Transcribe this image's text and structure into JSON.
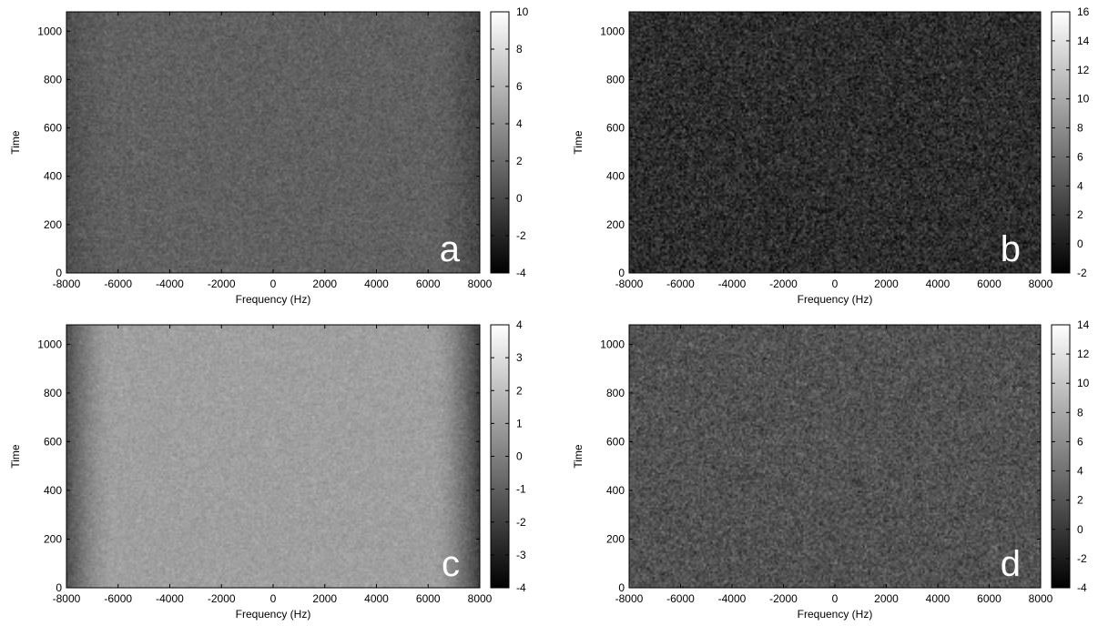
{
  "chart_data": [
    {
      "type": "heatmap",
      "panel_label": "a",
      "xlabel": "Frequency (Hz)",
      "ylabel": "Time",
      "xlim": [
        -8000,
        8000
      ],
      "ylim": [
        0,
        1080
      ],
      "xticks": [
        -8000,
        -6000,
        -4000,
        -2000,
        0,
        2000,
        4000,
        6000,
        8000
      ],
      "yticks": [
        0,
        200,
        400,
        600,
        800,
        1000
      ],
      "colorbar": {
        "min": -4,
        "max": 10,
        "ticks": [
          -4,
          -2,
          0,
          2,
          4,
          6,
          8,
          10
        ]
      },
      "colormap": "grayscale",
      "mean_level": 1.3,
      "noise_std": 0.5,
      "edge_falloff": {
        "left": -1.0,
        "right": -1.6
      }
    },
    {
      "type": "heatmap",
      "panel_label": "b",
      "xlabel": "Frequency (Hz)",
      "ylabel": "Time",
      "xlim": [
        -8000,
        8000
      ],
      "ylim": [
        0,
        1080
      ],
      "xticks": [
        -8000,
        -6000,
        -4000,
        -2000,
        0,
        2000,
        4000,
        6000,
        8000
      ],
      "yticks": [
        0,
        200,
        400,
        600,
        800,
        1000
      ],
      "colorbar": {
        "min": -2,
        "max": 16,
        "ticks": [
          -2,
          0,
          2,
          4,
          6,
          8,
          10,
          12,
          14,
          16
        ]
      },
      "colormap": "grayscale",
      "mean_level": 1.2,
      "noise_std": 1.3,
      "edge_falloff": {
        "left": 0,
        "right": 0
      }
    },
    {
      "type": "heatmap",
      "panel_label": "c",
      "xlabel": "Frequency (Hz)",
      "ylabel": "Time",
      "xlim": [
        -8000,
        8000
      ],
      "ylim": [
        0,
        1080
      ],
      "xticks": [
        -8000,
        -6000,
        -4000,
        -2000,
        0,
        2000,
        4000,
        6000,
        8000
      ],
      "yticks": [
        0,
        200,
        400,
        600,
        800,
        1000
      ],
      "colorbar": {
        "min": -4,
        "max": 4,
        "ticks": [
          -4,
          -3,
          -2,
          -1,
          0,
          1,
          2,
          3,
          4
        ]
      },
      "colormap": "grayscale",
      "mean_level": 1.0,
      "noise_std": 0.22,
      "edge_falloff": {
        "left": -2.5,
        "right": -3.0
      }
    },
    {
      "type": "heatmap",
      "panel_label": "d",
      "xlabel": "Frequency (Hz)",
      "ylabel": "Time",
      "xlim": [
        -8000,
        8000
      ],
      "ylim": [
        0,
        1080
      ],
      "xticks": [
        -8000,
        -6000,
        -4000,
        -2000,
        0,
        2000,
        4000,
        6000,
        8000
      ],
      "yticks": [
        0,
        200,
        400,
        600,
        800,
        1000
      ],
      "colorbar": {
        "min": -4,
        "max": 14,
        "ticks": [
          -4,
          -2,
          0,
          2,
          4,
          6,
          8,
          10,
          12,
          14
        ]
      },
      "colormap": "grayscale",
      "mean_level": 1.8,
      "noise_std": 1.1,
      "edge_falloff": {
        "left": 0,
        "right": 0
      }
    }
  ]
}
